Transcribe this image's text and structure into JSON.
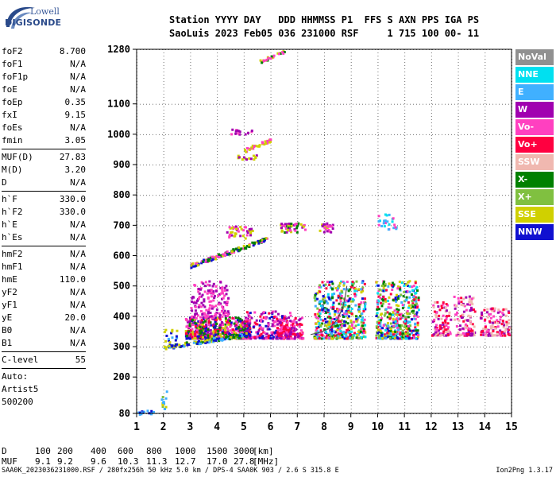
{
  "logo": {
    "top": "Lowell",
    "bottom": "DIGISONDE"
  },
  "header": {
    "line1": "Station YYYY DAY   DDD HHMMSS P1  FFS S AXN PPS IGA PS",
    "line2": "SaoLuis 2023 Feb05 036 231000 RSF     1 715 100 00- 11"
  },
  "scaled_parameters": {
    "group1": [
      {
        "name": "foF2",
        "value": "8.700"
      },
      {
        "name": "foF1",
        "value": "N/A"
      },
      {
        "name": "foF1p",
        "value": "N/A"
      },
      {
        "name": "foE",
        "value": "N/A"
      },
      {
        "name": "foEp",
        "value": "0.35"
      },
      {
        "name": "fxI",
        "value": "9.15"
      },
      {
        "name": "foEs",
        "value": "N/A"
      },
      {
        "name": "fmin",
        "value": "3.05"
      }
    ],
    "group2": [
      {
        "name": "MUF(D)",
        "value": "27.83"
      },
      {
        "name": "M(D)",
        "value": "3.20"
      },
      {
        "name": "D",
        "value": "N/A"
      }
    ],
    "group3": [
      {
        "name": "h`F",
        "value": "330.0"
      },
      {
        "name": "h`F2",
        "value": "330.0"
      },
      {
        "name": "h`E",
        "value": "N/A"
      },
      {
        "name": "h`Es",
        "value": "N/A"
      }
    ],
    "group4": [
      {
        "name": "hmF2",
        "value": "N/A"
      },
      {
        "name": "hmF1",
        "value": "N/A"
      },
      {
        "name": "hmE",
        "value": "110.0"
      },
      {
        "name": "yF2",
        "value": "N/A"
      },
      {
        "name": "yF1",
        "value": "N/A"
      },
      {
        "name": "yE",
        "value": "20.0"
      },
      {
        "name": "B0",
        "value": "N/A"
      },
      {
        "name": "B1",
        "value": "N/A"
      }
    ],
    "group5": [
      {
        "name": "C-level",
        "value": "55"
      }
    ]
  },
  "autoscaling": {
    "line1": "Auto:",
    "line2": "Artist5",
    "line3": "500200"
  },
  "legend": [
    {
      "label": "NoVal",
      "color": "#909090"
    },
    {
      "label": "NNE",
      "color": "#00e0f0"
    },
    {
      "label": "E",
      "color": "#40b0ff"
    },
    {
      "label": "W",
      "color": "#a000b0"
    },
    {
      "label": "Vo-",
      "color": "#ff40c0"
    },
    {
      "label": "Vo+",
      "color": "#ff0040"
    },
    {
      "label": "SSW",
      "color": "#f0b8b0"
    },
    {
      "label": "X-",
      "color": "#008000"
    },
    {
      "label": "X+",
      "color": "#80c040"
    },
    {
      "label": "SSE",
      "color": "#d0d000"
    },
    {
      "label": "NNW",
      "color": "#1010d0"
    }
  ],
  "muf_table": {
    "row1_label": "D",
    "row1_values": [
      "100",
      "200",
      "400",
      "600",
      "800",
      "1000",
      "1500",
      "3000",
      "[km]"
    ],
    "row2_label": "MUF",
    "row2_values": [
      "9.1",
      "9.2",
      "9.6",
      "10.3",
      "11.3",
      "12.7",
      "17.0",
      "27.8",
      "[MHz]"
    ]
  },
  "footer": {
    "left": "SAA0K_2023036231000.RSF / 280fx256h 50 kHz 5.0 km / DPS-4 SAA0K 903 / 2.6 S 315.8 E",
    "right": "Ion2Png 1.3.17"
  },
  "chart_data": {
    "type": "scatter",
    "title": "",
    "xlabel": "",
    "ylabel": "",
    "xlim": [
      1,
      15
    ],
    "ylim": [
      80,
      1280
    ],
    "xticks": [
      1,
      2,
      3,
      4,
      5,
      6,
      7,
      8,
      9,
      10,
      11,
      12,
      13,
      14,
      15
    ],
    "yticks": [
      80,
      200,
      300,
      400,
      500,
      600,
      700,
      800,
      900,
      1000,
      1100,
      1280
    ],
    "ytick_labels": [
      "80",
      "200",
      "300",
      "400",
      "500",
      "600",
      "700",
      "800",
      "900",
      "1000",
      "1100",
      "1280"
    ],
    "grid": true,
    "trace_regions": [
      {
        "x": [
          2.8,
          5.2
        ],
        "y": [
          330,
          400
        ],
        "colors": [
          "#a000b0",
          "#1010d0",
          "#ff40c0",
          "#ff0040",
          "#d0d000",
          "#008000"
        ],
        "count": 600
      },
      {
        "x": [
          3.0,
          4.4
        ],
        "y": [
          400,
          520
        ],
        "colors": [
          "#a000b0",
          "#ff40c0"
        ],
        "count": 160
      },
      {
        "x": [
          5.0,
          6.8
        ],
        "y": [
          330,
          420
        ],
        "colors": [
          "#a000b0",
          "#ff0040",
          "#1010d0",
          "#ff40c0"
        ],
        "count": 200
      },
      {
        "x": [
          6.2,
          7.2
        ],
        "y": [
          330,
          400
        ],
        "colors": [
          "#ff0040",
          "#ff40c0",
          "#a000b0"
        ],
        "count": 130
      },
      {
        "x": [
          7.6,
          9.5
        ],
        "y": [
          330,
          520
        ],
        "colors": [
          "#40b0ff",
          "#00e0f0",
          "#d0d000",
          "#008000",
          "#80c040",
          "#ff40c0",
          "#ff0040",
          "#1010d0"
        ],
        "count": 500
      },
      {
        "x": [
          9.9,
          11.5
        ],
        "y": [
          330,
          520
        ],
        "colors": [
          "#40b0ff",
          "#00e0f0",
          "#d0d000",
          "#008000",
          "#80c040",
          "#ff40c0",
          "#ff0040",
          "#1010d0"
        ],
        "count": 420
      },
      {
        "x": [
          12.0,
          12.7
        ],
        "y": [
          340,
          450
        ],
        "colors": [
          "#ff0040",
          "#ff40c0",
          "#a000b0",
          "#f0b8b0"
        ],
        "count": 100
      },
      {
        "x": [
          12.8,
          13.6
        ],
        "y": [
          340,
          470
        ],
        "colors": [
          "#ff40c0",
          "#a000b0",
          "#f0b8b0",
          "#ff0040"
        ],
        "count": 110
      },
      {
        "x": [
          13.8,
          14.9
        ],
        "y": [
          340,
          430
        ],
        "colors": [
          "#f0b8b0",
          "#ff0040",
          "#ff40c0",
          "#a000b0"
        ],
        "count": 130
      }
    ],
    "trace_lines": [
      {
        "x0": 2.0,
        "y0": 300,
        "x1": 5.2,
        "y1": 345,
        "colors": [
          "#d0d000",
          "#008000",
          "#1010d0",
          "#40b0ff"
        ],
        "count": 150
      },
      {
        "x0": 3.0,
        "y0": 570,
        "x1": 5.9,
        "y1": 660,
        "colors": [
          "#d0d000",
          "#008000",
          "#ff40c0",
          "#1010d0"
        ],
        "count": 120
      },
      {
        "x0": 5.0,
        "y0": 950,
        "x1": 6.0,
        "y1": 985,
        "colors": [
          "#d0d000",
          "#ff40c0"
        ],
        "count": 35
      },
      {
        "x0": 5.5,
        "y0": 1240,
        "x1": 6.6,
        "y1": 1280,
        "colors": [
          "#d0d000",
          "#ff40c0",
          "#008000"
        ],
        "count": 25
      }
    ],
    "trace_clusters": [
      {
        "x": [
          4.3,
          5.3
        ],
        "y": [
          660,
          700
        ],
        "colors": [
          "#a000b0",
          "#ff40c0",
          "#d0d000"
        ],
        "count": 40
      },
      {
        "x": [
          6.3,
          7.3
        ],
        "y": [
          680,
          710
        ],
        "colors": [
          "#d0d000",
          "#ff40c0",
          "#a000b0",
          "#008000"
        ],
        "count": 45
      },
      {
        "x": [
          7.8,
          8.3
        ],
        "y": [
          680,
          710
        ],
        "colors": [
          "#d0d000",
          "#ff40c0",
          "#a000b0"
        ],
        "count": 25
      },
      {
        "x": [
          10.0,
          10.7
        ],
        "y": [
          690,
          740
        ],
        "colors": [
          "#00e0f0",
          "#40b0ff",
          "#ff40c0"
        ],
        "count": 25
      },
      {
        "x": [
          4.5,
          5.3
        ],
        "y": [
          1000,
          1020
        ],
        "colors": [
          "#a000b0",
          "#ff40c0"
        ],
        "count": 15
      },
      {
        "x": [
          4.7,
          5.5
        ],
        "y": [
          920,
          940
        ],
        "colors": [
          "#a000b0",
          "#d0d000"
        ],
        "count": 15
      },
      {
        "x": [
          1.0,
          1.6
        ],
        "y": [
          80,
          95
        ],
        "colors": [
          "#1010d0",
          "#40b0ff"
        ],
        "count": 15
      },
      {
        "x": [
          1.9,
          2.1
        ],
        "y": [
          90,
          160
        ],
        "colors": [
          "#40b0ff",
          "#d0d000",
          "#80c040"
        ],
        "count": 12
      },
      {
        "x": [
          2.0,
          2.5
        ],
        "y": [
          300,
          360
        ],
        "colors": [
          "#1010d0",
          "#40b0ff",
          "#d0d000"
        ],
        "count": 25
      }
    ],
    "fitted_curve": {
      "color": "#505050",
      "x": [
        7.5,
        7.9,
        8.2,
        8.5,
        8.7,
        8.8,
        8.85
      ],
      "y": [
        340,
        348,
        360,
        390,
        430,
        470,
        500
      ]
    }
  }
}
